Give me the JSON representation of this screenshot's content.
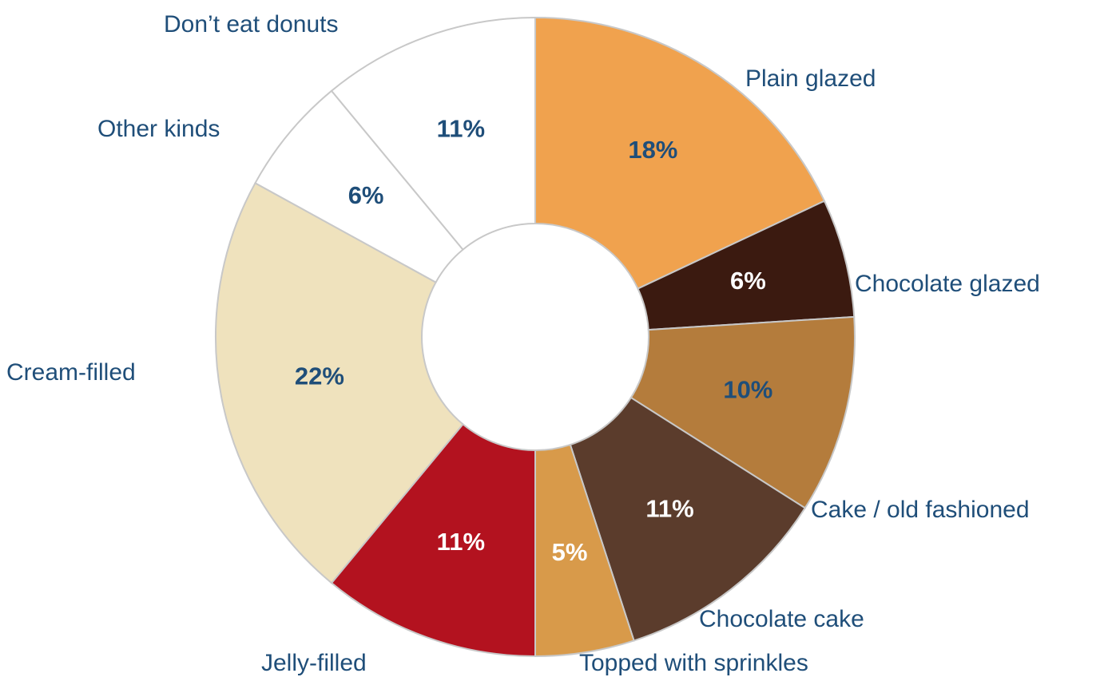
{
  "chart_data": {
    "type": "donut",
    "categories": [
      "Plain glazed",
      "Chocolate glazed",
      "Cake / old fashioned",
      "Chocolate cake",
      "Topped with sprinkles",
      "Jelly-filled",
      "Cream-filled",
      "Other kinds",
      "Don’t eat donuts"
    ],
    "values": [
      18,
      6,
      10,
      11,
      5,
      11,
      22,
      6,
      11
    ],
    "value_labels": [
      "18%",
      "6%",
      "10%",
      "11%",
      "5%",
      "11%",
      "22%",
      "6%",
      "11%"
    ],
    "colors": [
      "#f0a24e",
      "#3b1a10",
      "#b47c3c",
      "#5b3c2c",
      "#d89a4a",
      "#b3121f",
      "#efe2bd",
      "#ffffff",
      "#ffffff"
    ],
    "label_colors": [
      "#1f4e79",
      "#ffffff",
      "#1f4e79",
      "#ffffff",
      "#ffffff",
      "#ffffff",
      "#1f4e79",
      "#1f4e79",
      "#1f4e79"
    ]
  }
}
